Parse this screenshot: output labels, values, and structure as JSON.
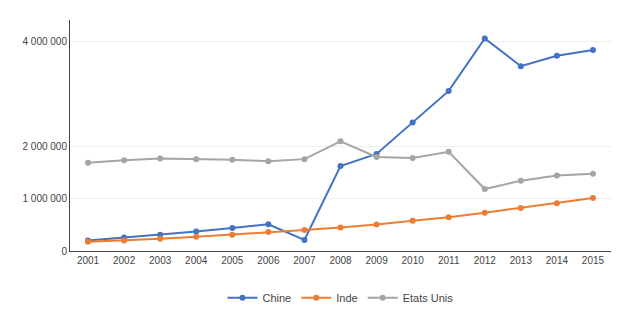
{
  "chart_data": {
    "type": "line",
    "x": [
      2001,
      2002,
      2003,
      2004,
      2005,
      2006,
      2007,
      2008,
      2009,
      2010,
      2011,
      2012,
      2013,
      2014,
      2015
    ],
    "series": [
      {
        "name": "Chine",
        "color": "#4472C4",
        "values": [
          200000,
          255000,
          310000,
          370000,
          440000,
          510000,
          210000,
          1620000,
          1850000,
          2450000,
          3050000,
          4050000,
          3520000,
          3720000,
          3830000
        ]
      },
      {
        "name": "Inde",
        "color": "#ED7D31",
        "values": [
          175000,
          200000,
          235000,
          270000,
          310000,
          360000,
          400000,
          450000,
          505000,
          575000,
          645000,
          730000,
          820000,
          910000,
          1010000
        ]
      },
      {
        "name": "Etats Unis",
        "color": "#A5A5A5",
        "values": [
          1680000,
          1730000,
          1760000,
          1750000,
          1740000,
          1710000,
          1750000,
          2090000,
          1790000,
          1770000,
          1890000,
          1180000,
          1340000,
          1440000,
          1470000
        ]
      }
    ],
    "xlim": [
      2000.5,
      2015.5
    ],
    "xticks": [
      2001,
      2002,
      2003,
      2004,
      2005,
      2006,
      2007,
      2008,
      2009,
      2010,
      2011,
      2012,
      2013,
      2014,
      2015
    ],
    "ylim": [
      0,
      4400000
    ],
    "yticks": [
      0,
      {
        "value": 1000000,
        "label": "1 000 000"
      },
      {
        "value": 2000000,
        "label": "2 000 000"
      },
      {
        "value": 4000000,
        "label": "4 000 000"
      }
    ],
    "grid": "y",
    "legend": "bottom",
    "marker": "circle"
  }
}
